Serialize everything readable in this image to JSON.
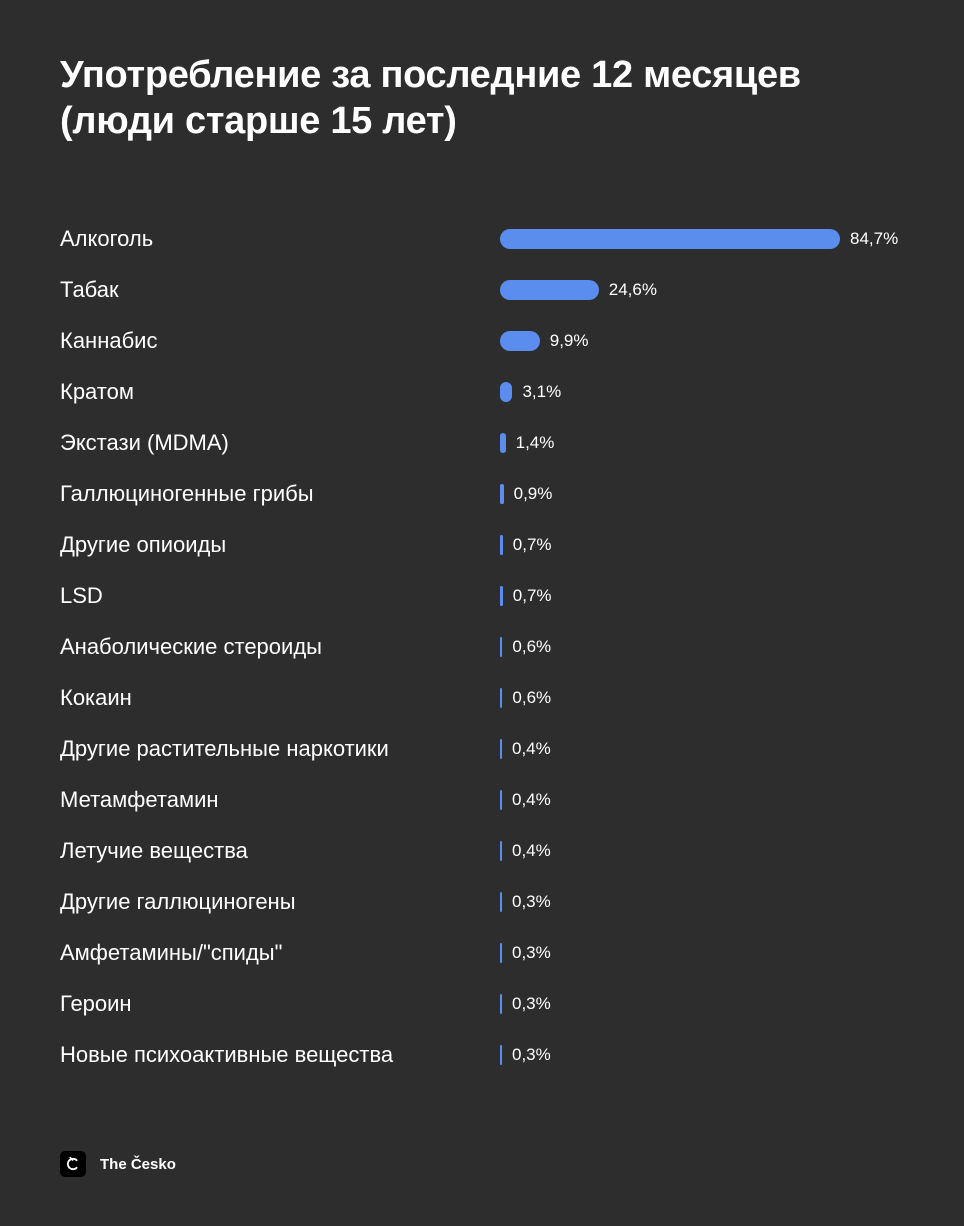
{
  "title_lines": [
    "Употребление за последние 12 месяцев",
    "(люди старше 15 лет)"
  ],
  "footer": {
    "brand": "The Česko",
    "logo_icon": "the-cesko-logo-icon"
  },
  "colors": {
    "background": "#2d2d2d",
    "bar": "#5b8def",
    "text": "#ffffff"
  },
  "chart_data": {
    "type": "bar",
    "orientation": "horizontal",
    "title": "Употребление за последние 12 месяцев (люди старше 15 лет)",
    "categories": [
      "Алкоголь",
      "Табак",
      "Каннабис",
      "Кратом",
      "Экстази (MDMA)",
      "Галлюциногенные грибы",
      "Другие опиоиды",
      "LSD",
      "Анаболические стероиды",
      "Кокаин",
      "Другие растительные наркотики",
      "Метамфетамин",
      "Летучие вещества",
      "Другие галлюциногены",
      "Амфетамины/\"спиды\"",
      "Героин",
      "Новые психоактивные вещества"
    ],
    "values": [
      84.7,
      24.6,
      9.9,
      3.1,
      1.4,
      0.9,
      0.7,
      0.7,
      0.6,
      0.6,
      0.4,
      0.4,
      0.4,
      0.3,
      0.3,
      0.3,
      0.3
    ],
    "value_labels": [
      "84,7%",
      "24,6%",
      "9,9%",
      "3,1%",
      "1,4%",
      "0,9%",
      "0,7%",
      "0,7%",
      "0,6%",
      "0,6%",
      "0,4%",
      "0,4%",
      "0,4%",
      "0,3%",
      "0,3%",
      "0,3%",
      "0,3%"
    ],
    "unit": "%",
    "xlim": [
      0,
      84.7
    ],
    "grid": false,
    "legend": "none"
  }
}
